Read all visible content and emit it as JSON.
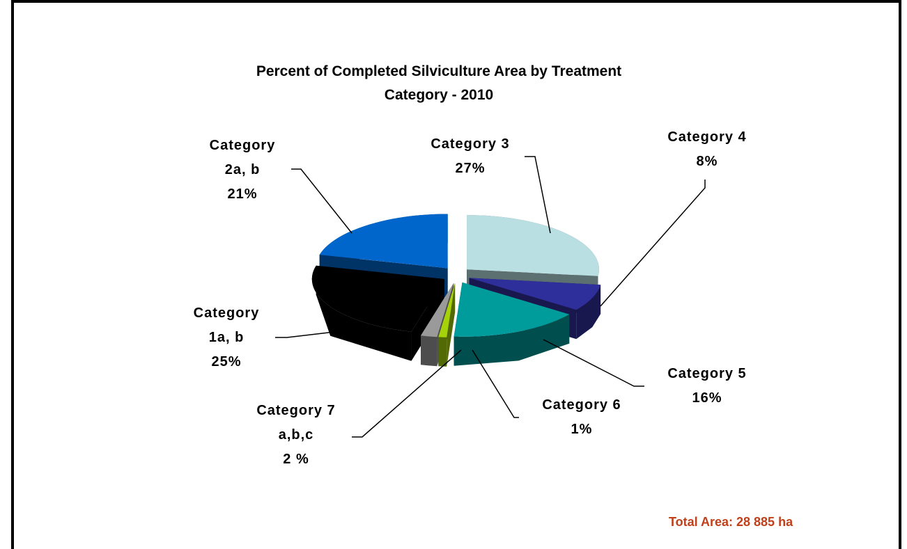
{
  "chart_data": {
    "type": "pie3d",
    "title": "Percent of Completed Silviculture Area by Treatment Category - 2010",
    "annotation": "Total Area: 28 885 ha",
    "categories": [
      "Category 3",
      "Category 4",
      "Category 5",
      "Category 6",
      "Category 7 a,b,c",
      "Category 1a, b",
      "Category 2a, b"
    ],
    "values": [
      27,
      8,
      16,
      1,
      2,
      25,
      21
    ],
    "value_labels": [
      "27%",
      "8%",
      "16%",
      "1%",
      "2 %",
      "25%",
      "21%"
    ],
    "colors": [
      "#b9dfe2",
      "#2f2f9c",
      "#009b9b",
      "#a6d20a",
      "#9a9a9a",
      "#000000",
      "#0066cc"
    ]
  }
}
